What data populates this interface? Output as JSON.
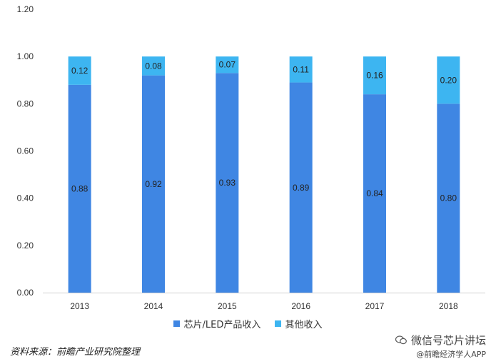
{
  "chart_data": {
    "type": "bar",
    "stacked": true,
    "categories": [
      "2013",
      "2014",
      "2015",
      "2016",
      "2017",
      "2018"
    ],
    "series": [
      {
        "name": "芯片/LED产品收入",
        "values": [
          0.88,
          0.92,
          0.93,
          0.89,
          0.84,
          0.8
        ],
        "color": "#3F86E3"
      },
      {
        "name": "其他收入",
        "values": [
          0.12,
          0.08,
          0.07,
          0.11,
          0.16,
          0.2
        ],
        "color": "#3DB5F1"
      }
    ],
    "data_labels": {
      "芯片/LED产品收入": [
        "0.88",
        "0.92",
        "0.93",
        "0.89",
        "0.84",
        "0.80"
      ],
      "其他收入": [
        "0.12",
        "0.08",
        "0.07",
        "0.11",
        "0.16",
        "0.20"
      ]
    },
    "yticks": [
      "0.00",
      "0.20",
      "0.40",
      "0.60",
      "0.80",
      "1.00",
      "1.20"
    ],
    "ylim": [
      0,
      1.2
    ],
    "grid": false,
    "legend_position": "bottom",
    "title": "",
    "xlabel": "",
    "ylabel": ""
  },
  "source_text": "资料来源：前瞻产业研究院整理",
  "watermark": {
    "line1": "微信号芯片讲坛",
    "line2": "@前瞻经济学人APP"
  }
}
